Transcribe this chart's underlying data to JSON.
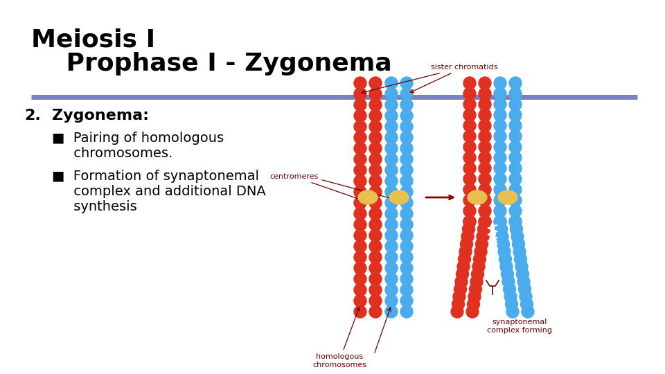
{
  "title_line1": "Meiosis I",
  "title_line2": "    Prophase I - Zygonema",
  "title_fontsize": 26,
  "title_color": "#000000",
  "divider_color": "#7B7FC4",
  "divider_lw": 5,
  "number_text": "2.",
  "section_title": "Zygonema:",
  "bullet1_line1": "■  Pairing of homologous",
  "bullet1_line2": "     chromosomes.",
  "bullet2_line1": "■  Formation of synaptonemal",
  "bullet2_line2": "     complex and additional DNA",
  "bullet2_line3": "     synthesis",
  "bullet_fontsize": 14,
  "section_fontsize": 16,
  "background_color": "#ffffff",
  "red_color": "#E03020",
  "blue_color": "#4AACED",
  "gold_color": "#E8C050",
  "label_color": "#6B0000",
  "arrow_color": "#8B0000",
  "label_fs": 8
}
